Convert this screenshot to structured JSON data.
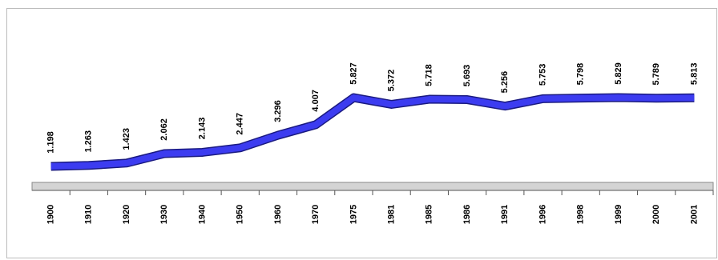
{
  "chart_data": {
    "type": "line",
    "categories": [
      "1900",
      "1910",
      "1920",
      "1930",
      "1940",
      "1950",
      "1960",
      "1970",
      "1975",
      "1981",
      "1985",
      "1986",
      "1991",
      "1996",
      "1998",
      "1999",
      "2000",
      "2001"
    ],
    "values": [
      1.198,
      1.263,
      1.423,
      2.062,
      2.143,
      2.447,
      3.296,
      4.007,
      5.827,
      5.372,
      5.718,
      5.693,
      5.256,
      5.753,
      5.798,
      5.829,
      5.789,
      5.813
    ],
    "color": "#3c3cf0"
  }
}
